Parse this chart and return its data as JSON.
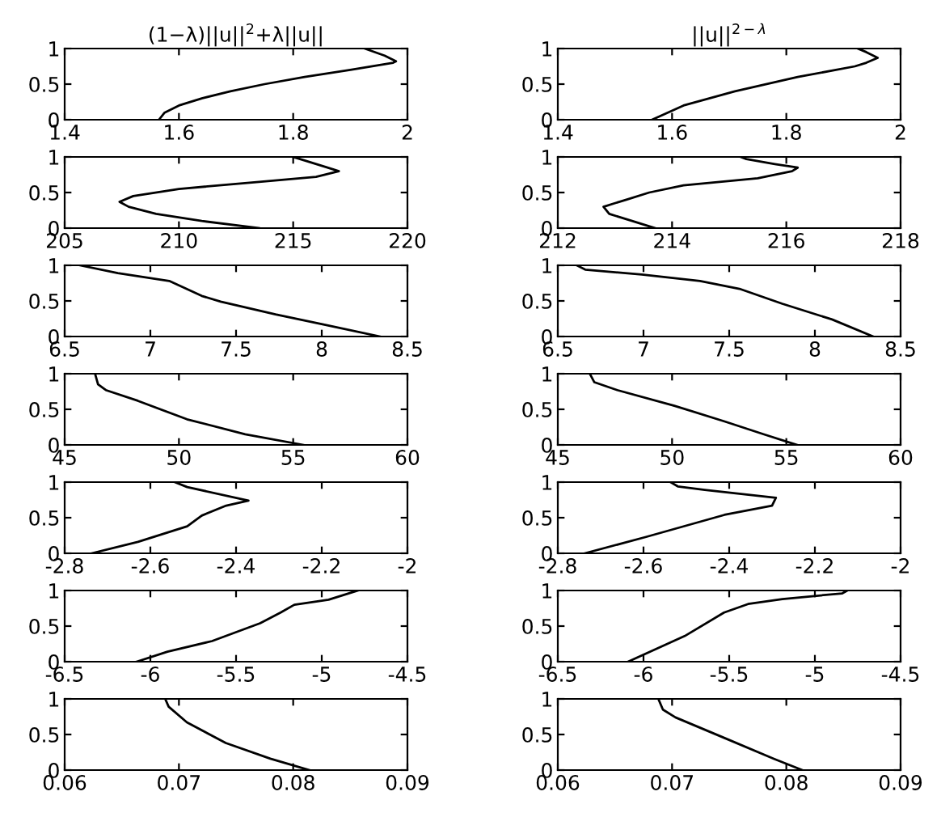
{
  "chart_data": [
    {
      "type": "line",
      "title": "(1−λ)||u||$^{2}$+λ||u||",
      "series": [
        {
          "color": "#000000",
          "x": [
            1.565,
            1.575,
            1.6,
            1.64,
            1.69,
            1.75,
            1.82,
            1.9,
            1.975,
            1.98,
            1.96,
            1.925
          ],
          "values": [
            0,
            0.1,
            0.2,
            0.3,
            0.4,
            0.5,
            0.6,
            0.7,
            0.8,
            0.82,
            0.9,
            1
          ]
        }
      ],
      "xlim": [
        1.4,
        2
      ],
      "xticks": [
        1.4,
        1.6,
        1.8,
        2
      ],
      "ylim": [
        0,
        1
      ],
      "yticks": [
        0,
        0.5,
        1
      ]
    },
    {
      "type": "line",
      "title": "||u||$^{2−λ}$",
      "series": [
        {
          "color": "#000000",
          "x": [
            1.565,
            1.62,
            1.71,
            1.82,
            1.92,
            1.94,
            1.96,
            1.94,
            1.925
          ],
          "values": [
            0,
            0.2,
            0.4,
            0.6,
            0.75,
            0.8,
            0.87,
            0.95,
            1
          ]
        }
      ],
      "xlim": [
        1.4,
        2
      ],
      "xticks": [
        1.4,
        1.6,
        1.8,
        2
      ],
      "ylim": [
        0,
        1
      ],
      "yticks": [
        0,
        0.5,
        1
      ]
    },
    {
      "type": "line",
      "series": [
        {
          "color": "#000000",
          "x": [
            213.5,
            211,
            209,
            207.8,
            207.4,
            208,
            210,
            213.5,
            216,
            217,
            216.5,
            215.5,
            215
          ],
          "values": [
            0,
            0.1,
            0.2,
            0.3,
            0.37,
            0.45,
            0.55,
            0.65,
            0.72,
            0.8,
            0.85,
            0.95,
            1
          ]
        }
      ],
      "xlim": [
        205,
        220
      ],
      "xticks": [
        205,
        210,
        215,
        220
      ],
      "ylim": [
        0,
        1
      ],
      "yticks": [
        0,
        0.5,
        1
      ]
    },
    {
      "type": "line",
      "series": [
        {
          "color": "#000000",
          "x": [
            213.7,
            213.3,
            212.9,
            212.8,
            213.2,
            213.6,
            214.2,
            215.5,
            216.1,
            216.2,
            215.8,
            215.3,
            215.2
          ],
          "values": [
            0,
            0.1,
            0.2,
            0.3,
            0.4,
            0.5,
            0.6,
            0.7,
            0.8,
            0.85,
            0.9,
            0.97,
            1
          ]
        }
      ],
      "xlim": [
        212,
        218
      ],
      "xticks": [
        212,
        214,
        216,
        218
      ],
      "ylim": [
        0,
        1
      ],
      "yticks": [
        0,
        0.5,
        1
      ]
    },
    {
      "type": "line",
      "series": [
        {
          "color": "#000000",
          "x": [
            8.34,
            8.01,
            7.73,
            7.41,
            7.3,
            7.11,
            6.81,
            6.59
          ],
          "values": [
            0,
            0.17,
            0.31,
            0.49,
            0.57,
            0.78,
            0.89,
            1
          ]
        }
      ],
      "xlim": [
        6.5,
        8.5
      ],
      "xticks": [
        6.5,
        7,
        7.5,
        8,
        8.5
      ],
      "ylim": [
        0,
        1
      ],
      "yticks": [
        0,
        0.5,
        1
      ]
    },
    {
      "type": "line",
      "series": [
        {
          "color": "#000000",
          "x": [
            8.34,
            8.1,
            7.81,
            7.56,
            7.33,
            6.99,
            6.66,
            6.61
          ],
          "values": [
            0,
            0.24,
            0.46,
            0.67,
            0.78,
            0.87,
            0.94,
            1
          ]
        }
      ],
      "xlim": [
        6.5,
        8.5
      ],
      "xticks": [
        6.5,
        7,
        7.5,
        8,
        8.5
      ],
      "ylim": [
        0,
        1
      ],
      "yticks": [
        0,
        0.5,
        1
      ]
    },
    {
      "type": "line",
      "series": [
        {
          "color": "#000000",
          "x": [
            55.45,
            52.9,
            50.35,
            48.2,
            46.8,
            46.46,
            46.33
          ],
          "values": [
            0,
            0.15,
            0.36,
            0.62,
            0.77,
            0.85,
            1
          ]
        }
      ],
      "xlim": [
        45,
        60
      ],
      "xticks": [
        45,
        50,
        55,
        60
      ],
      "ylim": [
        0,
        1
      ],
      "yticks": [
        0,
        0.5,
        1
      ]
    },
    {
      "type": "line",
      "series": [
        {
          "color": "#000000",
          "x": [
            55.46,
            54.0,
            52.3,
            50.1,
            47.6,
            46.6,
            46.4
          ],
          "values": [
            0,
            0.15,
            0.33,
            0.55,
            0.77,
            0.88,
            1
          ]
        }
      ],
      "xlim": [
        45,
        60
      ],
      "xticks": [
        45,
        50,
        55,
        60
      ],
      "ylim": [
        0,
        1
      ],
      "yticks": [
        0,
        0.5,
        1
      ]
    },
    {
      "type": "line",
      "series": [
        {
          "color": "#000000",
          "x": [
            -2.737,
            -2.629,
            -2.514,
            -2.48,
            -2.423,
            -2.371,
            -2.514,
            -2.543
          ],
          "values": [
            0,
            0.16,
            0.38,
            0.53,
            0.67,
            0.74,
            0.93,
            1
          ]
        }
      ],
      "xlim": [
        -2.8,
        -2
      ],
      "xticks": [
        -2.8,
        -2.6,
        -2.4,
        -2.2,
        -2
      ],
      "ylim": [
        0,
        1
      ],
      "yticks": [
        0,
        0.5,
        1
      ]
    },
    {
      "type": "line",
      "series": [
        {
          "color": "#000000",
          "x": [
            -2.737,
            -2.594,
            -2.411,
            -2.3,
            -2.291,
            -2.457,
            -2.52,
            -2.537
          ],
          "values": [
            0,
            0.23,
            0.54,
            0.67,
            0.78,
            0.89,
            0.94,
            1
          ]
        }
      ],
      "xlim": [
        -2.8,
        -2
      ],
      "xticks": [
        -2.8,
        -2.6,
        -2.4,
        -2.2,
        -2
      ],
      "ylim": [
        0,
        1
      ],
      "yticks": [
        0,
        0.5,
        1
      ]
    },
    {
      "type": "line",
      "series": [
        {
          "color": "#000000",
          "x": [
            -6.08,
            -5.9,
            -5.64,
            -5.36,
            -5.24,
            -5.16,
            -4.96,
            -4.79
          ],
          "values": [
            0,
            0.14,
            0.29,
            0.54,
            0.69,
            0.8,
            0.87,
            1
          ]
        }
      ],
      "xlim": [
        -6.5,
        -4.5
      ],
      "xticks": [
        -6.5,
        -6,
        -5.5,
        -5,
        -4.5
      ],
      "ylim": [
        0,
        1
      ],
      "yticks": [
        0,
        0.5,
        1
      ]
    },
    {
      "type": "line",
      "series": [
        {
          "color": "#000000",
          "x": [
            -6.09,
            -5.76,
            -5.53,
            -5.39,
            -5.19,
            -4.84,
            -4.81
          ],
          "values": [
            0,
            0.36,
            0.69,
            0.81,
            0.88,
            0.96,
            1
          ]
        }
      ],
      "xlim": [
        -6.5,
        -4.5
      ],
      "xticks": [
        -6.5,
        -6,
        -5.5,
        -5,
        -4.5
      ],
      "ylim": [
        0,
        1
      ],
      "yticks": [
        0,
        0.5,
        1
      ]
    },
    {
      "type": "line",
      "series": [
        {
          "color": "#000000",
          "x": [
            0.0814,
            0.078,
            0.0741,
            0.0707,
            0.0691,
            0.0688
          ],
          "values": [
            0,
            0.16,
            0.38,
            0.67,
            0.89,
            1
          ]
        }
      ],
      "xlim": [
        0.06,
        0.09
      ],
      "xticks": [
        0.06,
        0.07,
        0.08,
        0.09
      ],
      "ylim": [
        0,
        1
      ],
      "yticks": [
        0,
        0.5,
        1
      ]
    },
    {
      "type": "line",
      "series": [
        {
          "color": "#000000",
          "x": [
            0.0814,
            0.0789,
            0.0746,
            0.0703,
            0.0692,
            0.0688
          ],
          "values": [
            0,
            0.16,
            0.45,
            0.74,
            0.85,
            1
          ]
        }
      ],
      "xlim": [
        0.06,
        0.09
      ],
      "xticks": [
        0.06,
        0.07,
        0.08,
        0.09
      ],
      "ylim": [
        0,
        1
      ],
      "yticks": [
        0,
        0.5,
        1
      ]
    }
  ]
}
